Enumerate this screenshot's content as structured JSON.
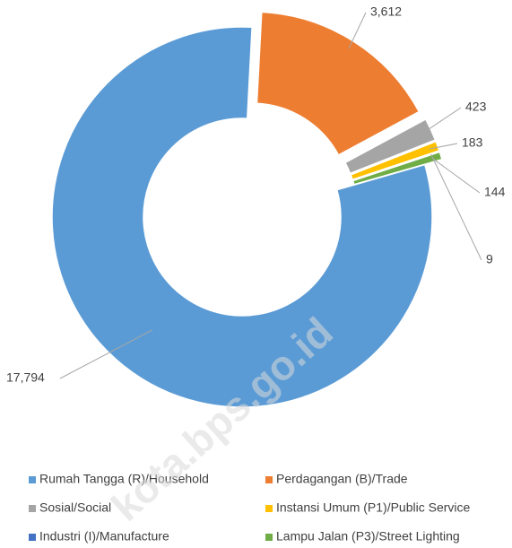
{
  "chart_data": {
    "type": "donut",
    "categories": [
      "Rumah Tangga (R)/Household",
      "Perdagangan (B)/Trade",
      "Sosial/Social",
      "Instansi Umum (P1)/Public Service",
      "Industri (I)/Manufacture",
      "Lampu Jalan (P3)/Street Lighting"
    ],
    "values": [
      17794,
      3612,
      423,
      183,
      9,
      144
    ],
    "value_labels": [
      "17,794",
      "3,612",
      "423",
      "183",
      "9",
      "144"
    ],
    "colors": [
      "#5b9bd5",
      "#ed7d31",
      "#a5a5a5",
      "#ffc000",
      "#4472c4",
      "#70ad47"
    ],
    "watermark": "kota.bps.go.id"
  }
}
